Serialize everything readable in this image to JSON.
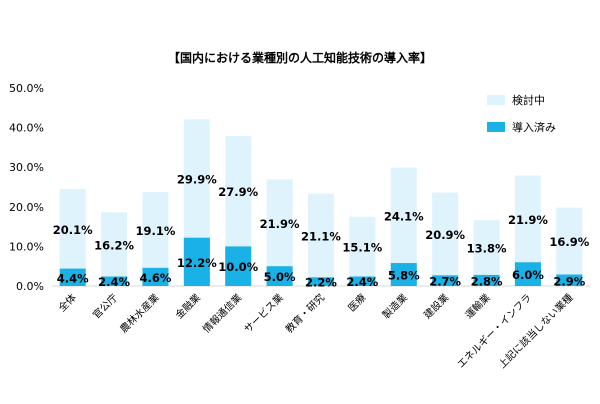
{
  "chart_data": {
    "type": "bar",
    "stacked": true,
    "title": "【国内における業種別の人工知能技術の導入率】",
    "xlabel": "",
    "ylabel": "",
    "ylim": [
      0,
      50
    ],
    "y_ticks": [
      "0.0%",
      "10.0%",
      "20.0%",
      "30.0%",
      "40.0%",
      "50.0%"
    ],
    "y_tick_values": [
      0,
      10,
      20,
      30,
      40,
      50
    ],
    "grid": false,
    "legend_position": "top-right",
    "categories": [
      "全体",
      "官公庁",
      "農林水産業",
      "金融業",
      "情報通信業",
      "サービス業",
      "教育・研究",
      "医療",
      "製造業",
      "建設業",
      "運輸業",
      "エネルギー・インフラ",
      "上記に該当しない業種"
    ],
    "series": [
      {
        "name": "導入済み",
        "color": "#1ab1e6",
        "values": [
          4.4,
          2.4,
          4.6,
          12.2,
          10.0,
          5.0,
          2.2,
          2.4,
          5.8,
          2.7,
          2.8,
          6.0,
          2.9
        ],
        "labels": [
          "4.4%",
          "2.4%",
          "4.6%",
          "12.2%",
          "10.0%",
          "5.0%",
          "2.2%",
          "2.4%",
          "5.8%",
          "2.7%",
          "2.8%",
          "6.0%",
          "2.9%"
        ]
      },
      {
        "name": "検討中",
        "color": "#dff3fc",
        "values": [
          20.1,
          16.2,
          19.1,
          29.9,
          27.9,
          21.9,
          21.1,
          15.1,
          24.1,
          20.9,
          13.8,
          21.9,
          16.9
        ],
        "labels": [
          "20.1%",
          "16.2%",
          "19.1%",
          "29.9%",
          "27.9%",
          "21.9%",
          "21.1%",
          "15.1%",
          "24.1%",
          "20.9%",
          "13.8%",
          "21.9%",
          "16.9%"
        ]
      }
    ]
  }
}
